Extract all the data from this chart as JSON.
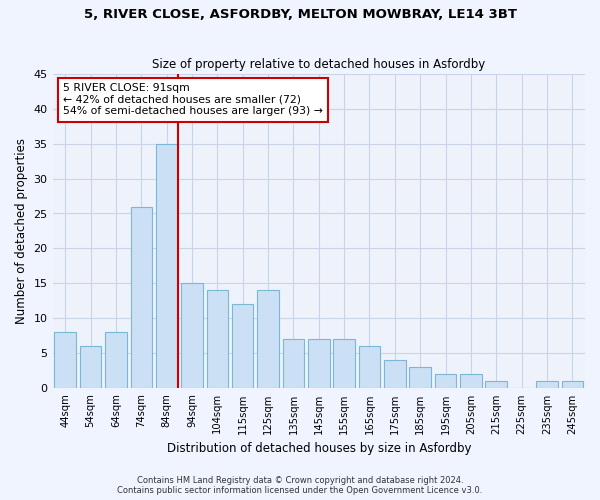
{
  "title_line1": "5, RIVER CLOSE, ASFORDBY, MELTON MOWBRAY, LE14 3BT",
  "title_line2": "Size of property relative to detached houses in Asfordby",
  "xlabel": "Distribution of detached houses by size in Asfordby",
  "ylabel": "Number of detached properties",
  "categories": [
    "44sqm",
    "54sqm",
    "64sqm",
    "74sqm",
    "84sqm",
    "94sqm",
    "104sqm",
    "115sqm",
    "125sqm",
    "135sqm",
    "145sqm",
    "155sqm",
    "165sqm",
    "175sqm",
    "185sqm",
    "195sqm",
    "205sqm",
    "215sqm",
    "225sqm",
    "235sqm",
    "245sqm"
  ],
  "values": [
    8,
    6,
    8,
    26,
    35,
    15,
    14,
    12,
    14,
    7,
    7,
    7,
    6,
    4,
    3,
    2,
    2,
    1,
    0,
    1,
    1
  ],
  "bar_color": "#cce0f5",
  "bar_edge_color": "#7ab8d8",
  "vline_x": 4,
  "vline_color": "#cc0000",
  "annotation_text": "5 RIVER CLOSE: 91sqm\n← 42% of detached houses are smaller (72)\n54% of semi-detached houses are larger (93) →",
  "annotation_box_color": "#ffffff",
  "annotation_box_edge_color": "#cc0000",
  "ylim": [
    0,
    45
  ],
  "yticks": [
    0,
    5,
    10,
    15,
    20,
    25,
    30,
    35,
    40,
    45
  ],
  "grid_color": "#c8d4e8",
  "bg_color": "#eef2fa",
  "footer_line1": "Contains HM Land Registry data © Crown copyright and database right 2024.",
  "footer_line2": "Contains public sector information licensed under the Open Government Licence v3.0."
}
